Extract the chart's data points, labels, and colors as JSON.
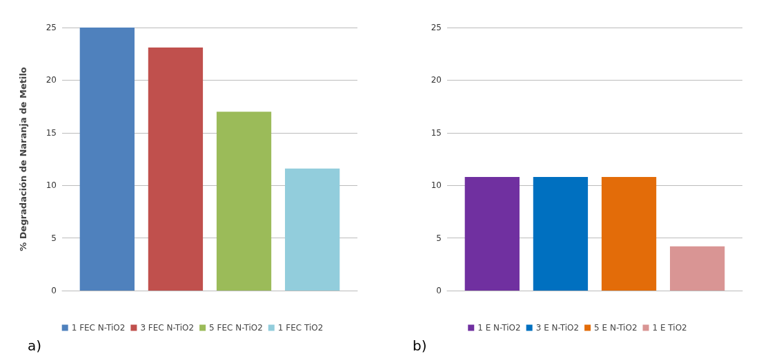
{
  "chart_data": [
    {
      "type": "bar",
      "ylabel": "% Degradación de Naranja de Metilo",
      "categories": [
        null
      ],
      "series": [
        {
          "name": "1 FEC N-TiO2",
          "color": "#4f81bd",
          "values": [
            25
          ]
        },
        {
          "name": "3 FEC N-TiO2",
          "color": "#c0504d",
          "values": [
            23.1
          ]
        },
        {
          "name": "5 FEC N-TiO2",
          "color": "#9bbb59",
          "values": [
            17
          ]
        },
        {
          "name": "1 FEC TiO2",
          "color": "#92cddc",
          "values": [
            11.6
          ]
        }
      ],
      "ylim": [
        0,
        25
      ],
      "yticks": [
        0,
        5,
        10,
        15,
        20,
        25
      ],
      "grid": "y",
      "legend": "bottom",
      "annotations": [
        "a)"
      ]
    },
    {
      "type": "bar",
      "categories": [
        null
      ],
      "series": [
        {
          "name": "1 E N-TiO2",
          "color": "#7030a0",
          "values": [
            10.8
          ]
        },
        {
          "name": "3 E N-TiO2",
          "color": "#0070c0",
          "values": [
            10.8
          ]
        },
        {
          "name": "5 E N-TiO2",
          "color": "#e36c09",
          "values": [
            10.8
          ]
        },
        {
          "name": "1 E TiO2",
          "color": "#d99594",
          "values": [
            4.2
          ]
        }
      ],
      "ylim": [
        0,
        25
      ],
      "yticks": [
        0,
        5,
        10,
        15,
        20,
        25
      ],
      "grid": "y",
      "legend": "bottom",
      "annotations": [
        "b)"
      ]
    }
  ]
}
